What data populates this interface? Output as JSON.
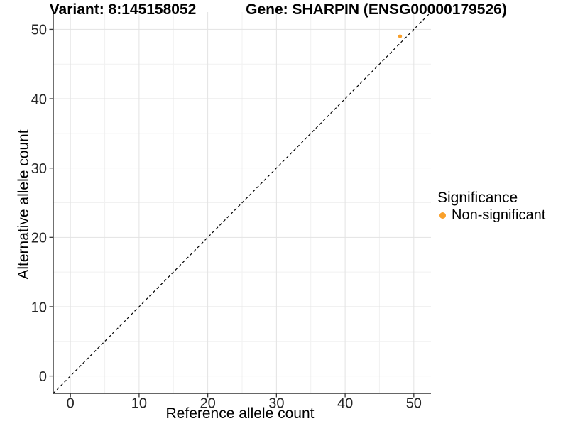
{
  "header": {
    "variant_title": "Variant: 8:145158052",
    "gene_title": "Gene: SHARPIN (ENSG00000179526)"
  },
  "chart_data": {
    "type": "scatter",
    "xlabel": "Reference allele count",
    "ylabel": "Alternative allele count",
    "xlim": [
      -2.5,
      52.5
    ],
    "ylim": [
      -2.5,
      52.5
    ],
    "x_major_ticks": [
      0,
      10,
      20,
      30,
      40,
      50
    ],
    "y_major_ticks": [
      0,
      10,
      20,
      30,
      40,
      50
    ],
    "x_minor_ticks": [
      5,
      15,
      25,
      35,
      45
    ],
    "y_minor_ticks": [
      5,
      15,
      25,
      35,
      45
    ],
    "grid": "major and minor gridlines, white panel background",
    "reference_line": {
      "type": "identity y=x",
      "style": "dashed",
      "color": "#000000"
    },
    "series": [
      {
        "name": "Non-significant",
        "color": "#F9A02B",
        "points": [
          {
            "x": 48,
            "y": 49
          }
        ]
      }
    ],
    "legend": {
      "title": "Significance",
      "position": "right",
      "items": [
        {
          "label": "Non-significant",
          "color": "#F9A02B",
          "marker": "circle"
        }
      ]
    }
  },
  "colors": {
    "background": "#FFFFFF",
    "grid_major": "#E3E3E3",
    "grid_minor": "#F1F1F1",
    "axis_line": "#343434",
    "tick_mark": "#343434",
    "tick_label": "#262626",
    "point": "#F9A02B",
    "dashed_line": "#000000"
  }
}
